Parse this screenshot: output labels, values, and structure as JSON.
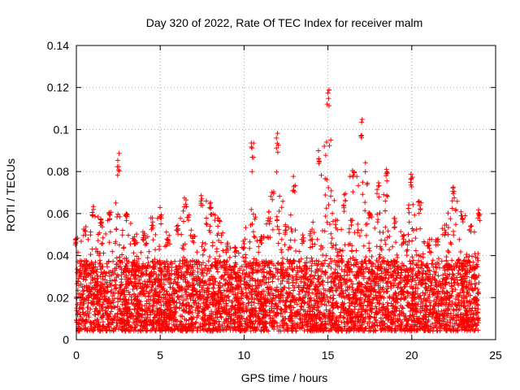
{
  "chart_data": {
    "type": "scatter",
    "title": "Day 320 of 2022, Rate Of TEC Index for receiver malm",
    "xlabel": "GPS time / hours",
    "ylabel": "ROTI / TECUs",
    "xlim": [
      0,
      25
    ],
    "ylim": [
      0,
      0.14
    ],
    "xticks": [
      0,
      5,
      10,
      15,
      20,
      25
    ],
    "yticks": [
      0,
      0.02,
      0.04,
      0.06,
      0.08,
      0.1,
      0.12,
      0.14
    ],
    "xtick_labels": [
      "0",
      "5",
      "10",
      "15",
      "20",
      "25"
    ],
    "ytick_labels": [
      "0",
      "0.02",
      "0.04",
      "0.06",
      "0.08",
      "0.1",
      "0.12",
      "0.14"
    ],
    "grid": true,
    "marker": "+",
    "color": "#ff0000",
    "series": [
      {
        "name": "ROTI",
        "description": "dense point cloud, mostly 0.005–0.045 TECU/s across 0–24 h with spikes",
        "envelope": [
          {
            "x": 0.0,
            "y": 0.048
          },
          {
            "x": 0.5,
            "y": 0.055
          },
          {
            "x": 1.0,
            "y": 0.064
          },
          {
            "x": 1.5,
            "y": 0.058
          },
          {
            "x": 2.0,
            "y": 0.062
          },
          {
            "x": 2.5,
            "y": 0.089
          },
          {
            "x": 3.0,
            "y": 0.062
          },
          {
            "x": 3.5,
            "y": 0.05
          },
          {
            "x": 4.0,
            "y": 0.052
          },
          {
            "x": 4.5,
            "y": 0.058
          },
          {
            "x": 5.0,
            "y": 0.064
          },
          {
            "x": 5.5,
            "y": 0.05
          },
          {
            "x": 6.0,
            "y": 0.055
          },
          {
            "x": 6.5,
            "y": 0.069
          },
          {
            "x": 7.0,
            "y": 0.05
          },
          {
            "x": 7.5,
            "y": 0.069
          },
          {
            "x": 8.0,
            "y": 0.066
          },
          {
            "x": 8.5,
            "y": 0.058
          },
          {
            "x": 9.0,
            "y": 0.046
          },
          {
            "x": 9.5,
            "y": 0.044
          },
          {
            "x": 10.0,
            "y": 0.048
          },
          {
            "x": 10.5,
            "y": 0.095
          },
          {
            "x": 11.0,
            "y": 0.05
          },
          {
            "x": 11.5,
            "y": 0.061
          },
          {
            "x": 12.0,
            "y": 0.099
          },
          {
            "x": 12.5,
            "y": 0.055
          },
          {
            "x": 13.0,
            "y": 0.078
          },
          {
            "x": 13.5,
            "y": 0.05
          },
          {
            "x": 14.0,
            "y": 0.052
          },
          {
            "x": 14.5,
            "y": 0.09
          },
          {
            "x": 15.0,
            "y": 0.123
          },
          {
            "x": 15.5,
            "y": 0.058
          },
          {
            "x": 16.0,
            "y": 0.07
          },
          {
            "x": 16.5,
            "y": 0.084
          },
          {
            "x": 17.0,
            "y": 0.106
          },
          {
            "x": 17.5,
            "y": 0.062
          },
          {
            "x": 18.0,
            "y": 0.075
          },
          {
            "x": 18.5,
            "y": 0.083
          },
          {
            "x": 19.0,
            "y": 0.058
          },
          {
            "x": 19.5,
            "y": 0.05
          },
          {
            "x": 20.0,
            "y": 0.079
          },
          {
            "x": 20.5,
            "y": 0.066
          },
          {
            "x": 21.0,
            "y": 0.048
          },
          {
            "x": 21.5,
            "y": 0.05
          },
          {
            "x": 22.0,
            "y": 0.055
          },
          {
            "x": 22.5,
            "y": 0.073
          },
          {
            "x": 23.0,
            "y": 0.062
          },
          {
            "x": 23.5,
            "y": 0.056
          },
          {
            "x": 24.0,
            "y": 0.062
          }
        ],
        "baseline_min": 0.004,
        "baseline_typical": 0.018
      }
    ]
  }
}
